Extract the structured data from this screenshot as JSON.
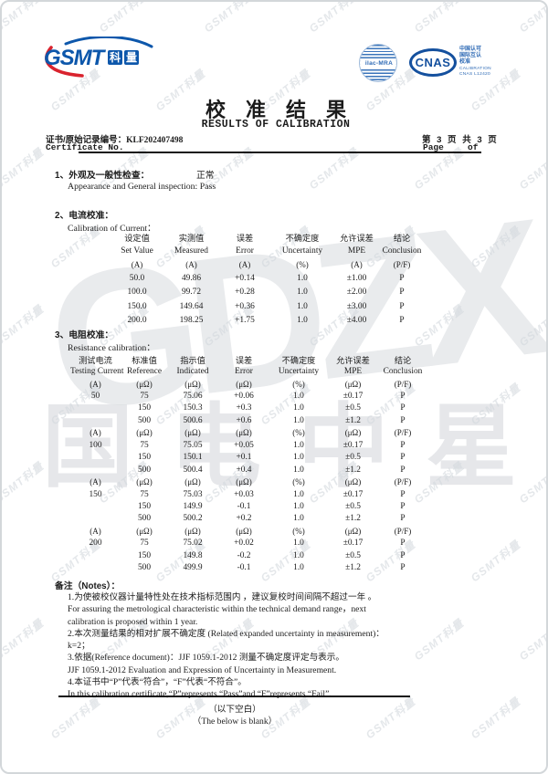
{
  "brand": {
    "gsmt_text": "GSMT",
    "gsmt_suffix_chars": [
      "科",
      "量"
    ],
    "ilac_text": "ilac-MRA",
    "cnas_text": "CNAS",
    "cnas_side_lines": [
      "中国认可",
      "国际互认",
      "校准",
      "CALIBRATION",
      "CNAS L12420"
    ],
    "accent_blue": "#14509e",
    "accent_red": "#d9232e"
  },
  "header": {
    "title_zh": "校准结果",
    "title_en": "RESULTS OF CALIBRATION",
    "cert_label_zh": "证书/原始记录编号：",
    "cert_no": "KLF202407498",
    "cert_label_en": "Certificate No.",
    "page_zh": "第 3 页  共 3 页",
    "page_label": "Page",
    "of_label": "of"
  },
  "section1": {
    "title_zh": "1、外观及一般性检查：",
    "result_zh": "正常",
    "line_en": "Appearance and General inspection: Pass"
  },
  "current_section": {
    "title_zh": "2、电流校准：",
    "title_en": "Calibration of Current：",
    "table": [
      {
        "type": "zh",
        "cells": [
          "设定值",
          "实测值",
          "误差",
          "不确定度",
          "允许误差",
          "结论"
        ]
      },
      {
        "type": "en",
        "cells": [
          "Set Value",
          "Measured",
          "Error",
          "Uncertainty",
          "MPE",
          "Conclusion"
        ]
      },
      {
        "type": "units",
        "cells": [
          "(A)",
          "(A)",
          "(A)",
          "(%)",
          "(A)",
          "(P/F)"
        ]
      },
      {
        "type": "data",
        "cells": [
          "50.0",
          "49.86",
          "+0.14",
          "1.0",
          "±1.00",
          "P"
        ]
      },
      {
        "type": "data",
        "cells": [
          "100.0",
          "99.72",
          "+0.28",
          "1.0",
          "±2.00",
          "P"
        ]
      },
      {
        "type": "data",
        "cells": [
          "150.0",
          "149.64",
          "+0.36",
          "1.0",
          "±3.00",
          "P"
        ]
      },
      {
        "type": "data",
        "cells": [
          "200.0",
          "198.25",
          "+1.75",
          "1.0",
          "±4.00",
          "P"
        ]
      }
    ]
  },
  "resistance_section": {
    "title_zh": "3、电阻校准：",
    "title_en": "Resistance calibration：",
    "table": [
      {
        "type": "zh",
        "cells": [
          "测试电流",
          "标准值",
          "指示值",
          "误差",
          "不确定度",
          "允许误差",
          "结论"
        ]
      },
      {
        "type": "en",
        "cells": [
          "Testing Current",
          "Reference",
          "Indicated",
          "Error",
          "Uncertainty",
          "MPE",
          "Conclusion"
        ]
      },
      {
        "type": "units",
        "cells": [
          "(A)",
          "(μΩ)",
          "(μΩ)",
          "(μΩ)",
          "(%)",
          "(μΩ)",
          "(P/F)"
        ]
      },
      {
        "type": "data",
        "cells": [
          "50",
          "75",
          "75.06",
          "+0.06",
          "1.0",
          "±0.17",
          "P"
        ]
      },
      {
        "type": "data",
        "cells": [
          "",
          "150",
          "150.3",
          "+0.3",
          "1.0",
          "±0.5",
          "P"
        ]
      },
      {
        "type": "data",
        "cells": [
          "",
          "500",
          "500.6",
          "+0.6",
          "1.0",
          "±1.2",
          "P"
        ]
      },
      {
        "type": "units",
        "cells": [
          "(A)",
          "(μΩ)",
          "(μΩ)",
          "(μΩ)",
          "(%)",
          "(μΩ)",
          "(P/F)"
        ]
      },
      {
        "type": "data",
        "cells": [
          "100",
          "75",
          "75.05",
          "+0.05",
          "1.0",
          "±0.17",
          "P"
        ]
      },
      {
        "type": "data",
        "cells": [
          "",
          "150",
          "150.1",
          "+0.1",
          "1.0",
          "±0.5",
          "P"
        ]
      },
      {
        "type": "data",
        "cells": [
          "",
          "500",
          "500.4",
          "+0.4",
          "1.0",
          "±1.2",
          "P"
        ]
      },
      {
        "type": "units",
        "cells": [
          "(A)",
          "(μΩ)",
          "(μΩ)",
          "(μΩ)",
          "(%)",
          "(μΩ)",
          "(P/F)"
        ]
      },
      {
        "type": "data",
        "cells": [
          "150",
          "75",
          "75.03",
          "+0.03",
          "1.0",
          "±0.17",
          "P"
        ]
      },
      {
        "type": "data",
        "cells": [
          "",
          "150",
          "149.9",
          "-0.1",
          "1.0",
          "±0.5",
          "P"
        ]
      },
      {
        "type": "data",
        "cells": [
          "",
          "500",
          "500.2",
          "+0.2",
          "1.0",
          "±1.2",
          "P"
        ]
      },
      {
        "type": "units",
        "cells": [
          "(A)",
          "(μΩ)",
          "(μΩ)",
          "(μΩ)",
          "(%)",
          "(μΩ)",
          "(P/F)"
        ]
      },
      {
        "type": "data",
        "cells": [
          "200",
          "75",
          "75.02",
          "+0.02",
          "1.0",
          "±0.17",
          "P"
        ]
      },
      {
        "type": "data",
        "cells": [
          "",
          "150",
          "149.8",
          "-0.2",
          "1.0",
          "±0.5",
          "P"
        ]
      },
      {
        "type": "data",
        "cells": [
          "",
          "500",
          "499.9",
          "-0.1",
          "1.0",
          "±1.2",
          "P"
        ]
      }
    ]
  },
  "notes": {
    "header": "备注（Notes）：",
    "lines": [
      "1.为使被校仪器计量特性处在技术指标范围内 ，建议复校时间间隔不超过一年 。",
      "For assuring the metrological characteristic within the technical demand range，next",
      "calibration is proposed within 1 year.",
      "2.本次测量结果的相对扩展不确定度 (Related expanded uncertainty in measurement)：",
      "k=2；",
      "3.依据(Reference document)：JJF 1059.1-2012 测量不确定度评定与表示。",
      "JJF 1059.1-2012 Evaluation and Expression of Uncertainty in Measurement.",
      "4.本证书中“P”代表“符合”，“F”代表“不符合”。",
      "In this calibration certificate,“P”represents “Pass”and “F”represents “Fail”."
    ],
    "blank_zh": "（以下空白）",
    "blank_en": "（The below is blank）"
  },
  "watermarks": {
    "small": "GSMT科量",
    "big_latin": "GDZX",
    "big_cjk": "国电中星"
  }
}
